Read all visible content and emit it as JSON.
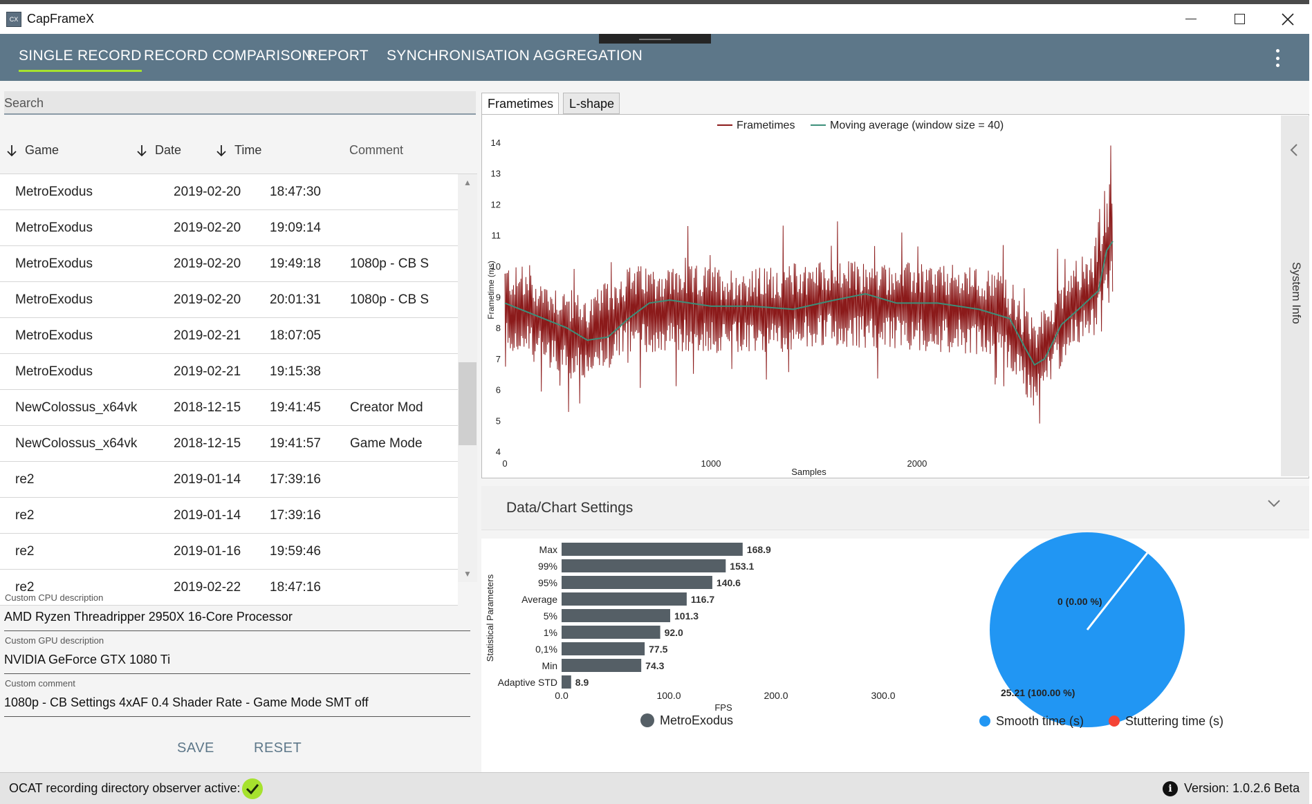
{
  "window": {
    "title": "CapFrameX",
    "icon_text": "CX"
  },
  "nav": {
    "tabs": [
      {
        "label": "SINGLE RECORD",
        "active": true
      },
      {
        "label": "RECORD COMPARISON",
        "active": false
      },
      {
        "label": "REPORT",
        "active": false
      },
      {
        "label": "SYNCHRONISATION",
        "active": false
      },
      {
        "label": "AGGREGATION",
        "active": false
      }
    ]
  },
  "search": {
    "placeholder": "Search"
  },
  "table": {
    "headers": {
      "game": "Game",
      "date": "Date",
      "time": "Time",
      "comment": "Comment"
    },
    "rows": [
      {
        "game": "MetroExodus",
        "date": "2019-02-20",
        "time": "18:47:30",
        "comment": ""
      },
      {
        "game": "MetroExodus",
        "date": "2019-02-20",
        "time": "19:09:14",
        "comment": ""
      },
      {
        "game": "MetroExodus",
        "date": "2019-02-20",
        "time": "19:49:18",
        "comment": "1080p - CB S"
      },
      {
        "game": "MetroExodus",
        "date": "2019-02-20",
        "time": "20:01:31",
        "comment": "1080p - CB S"
      },
      {
        "game": "MetroExodus",
        "date": "2019-02-21",
        "time": "18:07:05",
        "comment": ""
      },
      {
        "game": "MetroExodus",
        "date": "2019-02-21",
        "time": "19:15:38",
        "comment": ""
      },
      {
        "game": "NewColossus_x64vk",
        "date": "2018-12-15",
        "time": "19:41:45",
        "comment": "Creator Mod"
      },
      {
        "game": "NewColossus_x64vk",
        "date": "2018-12-15",
        "time": "19:41:57",
        "comment": "Game Mode"
      },
      {
        "game": "re2",
        "date": "2019-01-14",
        "time": "17:39:16",
        "comment": ""
      },
      {
        "game": "re2",
        "date": "2019-01-14",
        "time": "17:39:16",
        "comment": ""
      },
      {
        "game": "re2",
        "date": "2019-01-16",
        "time": "19:59:46",
        "comment": ""
      },
      {
        "game": "re2",
        "date": "2019-02-22",
        "time": "18:47:16",
        "comment": ""
      }
    ]
  },
  "fields": {
    "cpu_label": "Custom CPU description",
    "cpu_value": "AMD Ryzen Threadripper 2950X 16-Core Processor",
    "gpu_label": "Custom GPU description",
    "gpu_value": "NVIDIA GeForce GTX 1080 Ti",
    "comment_label": "Custom comment",
    "comment_value": "1080p - CB Settings 4xAF 0.4 Shader Rate - Game Mode SMT off"
  },
  "buttons": {
    "save": "SAVE",
    "reset": "RESET"
  },
  "status": {
    "observer_text": "OCAT recording directory observer active:",
    "version_text": "Version:  1.0.2.6 Beta"
  },
  "chart_tabs": {
    "frametimes": "Frametimes",
    "lshape": "L-shape"
  },
  "side_panel": {
    "system_info": "System Info"
  },
  "settings": {
    "title": "Data/Chart Settings"
  },
  "chart_data": [
    {
      "type": "line",
      "title": "",
      "xlabel": "Samples",
      "ylabel": "Frametime (ms)",
      "xlim": [
        0,
        2950
      ],
      "ylim": [
        4,
        14
      ],
      "x_ticks": [
        0,
        1000,
        2000
      ],
      "y_ticks": [
        4,
        5,
        6,
        7,
        8,
        9,
        10,
        11,
        12,
        13,
        14
      ],
      "legend": [
        "Frametimes",
        "Moving average (window size = 40)"
      ],
      "series": [
        {
          "name": "Frametimes",
          "color": "#8b1a1a",
          "baseline": [
            [
              0,
              8.7
            ],
            [
              150,
              8.3
            ],
            [
              400,
              7.6
            ],
            [
              600,
              8.6
            ],
            [
              800,
              8.6
            ],
            [
              1000,
              8.6
            ],
            [
              1200,
              8.5
            ],
            [
              1400,
              8.7
            ],
            [
              1600,
              8.8
            ],
            [
              1800,
              8.7
            ],
            [
              2000,
              8.7
            ],
            [
              2200,
              8.6
            ],
            [
              2400,
              8.5
            ],
            [
              2500,
              7.5
            ],
            [
              2570,
              6.8
            ],
            [
              2650,
              7.6
            ],
            [
              2750,
              8.8
            ],
            [
              2850,
              9.0
            ],
            [
              2900,
              10.0
            ],
            [
              2950,
              10.8
            ]
          ],
          "amplitude": 1.1,
          "samples": 2950
        },
        {
          "name": "Moving average (window size = 40)",
          "color": "#3c8f7a",
          "points": [
            [
              0,
              8.8
            ],
            [
              150,
              8.4
            ],
            [
              300,
              8.0
            ],
            [
              400,
              7.6
            ],
            [
              500,
              7.7
            ],
            [
              600,
              8.3
            ],
            [
              700,
              8.8
            ],
            [
              800,
              8.9
            ],
            [
              1000,
              8.7
            ],
            [
              1200,
              8.7
            ],
            [
              1400,
              8.6
            ],
            [
              1600,
              8.9
            ],
            [
              1750,
              9.1
            ],
            [
              1900,
              8.8
            ],
            [
              2100,
              8.8
            ],
            [
              2300,
              8.6
            ],
            [
              2450,
              8.3
            ],
            [
              2520,
              7.4
            ],
            [
              2570,
              6.8
            ],
            [
              2620,
              7.0
            ],
            [
              2700,
              8.1
            ],
            [
              2800,
              8.7
            ],
            [
              2880,
              9.2
            ],
            [
              2920,
              10.5
            ],
            [
              2950,
              10.8
            ]
          ]
        }
      ]
    },
    {
      "type": "bar",
      "orientation": "horizontal",
      "ylabel": "Statistical Parameters",
      "xlabel": "FPS",
      "xlim": [
        0,
        300
      ],
      "x_ticks": [
        "0.0",
        "100.0",
        "200.0",
        "300.0"
      ],
      "categories": [
        "Max",
        "99%",
        "95%",
        "Average",
        "5%",
        "1%",
        "0,1%",
        "Min",
        "Adaptive STD"
      ],
      "values": [
        168.9,
        153.1,
        140.6,
        116.7,
        101.3,
        92.0,
        77.5,
        74.3,
        8.9
      ],
      "value_labels": [
        "168.9",
        "153.1",
        "140.6",
        "116.7",
        "101.3",
        "92.0",
        "77.5",
        "74.3",
        "8.9"
      ],
      "legend": [
        "MetroExodus"
      ],
      "color": "#555f66"
    },
    {
      "type": "pie",
      "slices": [
        {
          "label": "25.21 (100.00 %)",
          "name": "Smooth time (s)",
          "value": 25.21,
          "color": "#2196f3"
        },
        {
          "label": "0 (0.00 %)",
          "name": "Stuttering time (s)",
          "value": 0,
          "color": "#f44336"
        }
      ],
      "legend": [
        "Smooth time (s)",
        "Stuttering time (s)"
      ]
    }
  ]
}
